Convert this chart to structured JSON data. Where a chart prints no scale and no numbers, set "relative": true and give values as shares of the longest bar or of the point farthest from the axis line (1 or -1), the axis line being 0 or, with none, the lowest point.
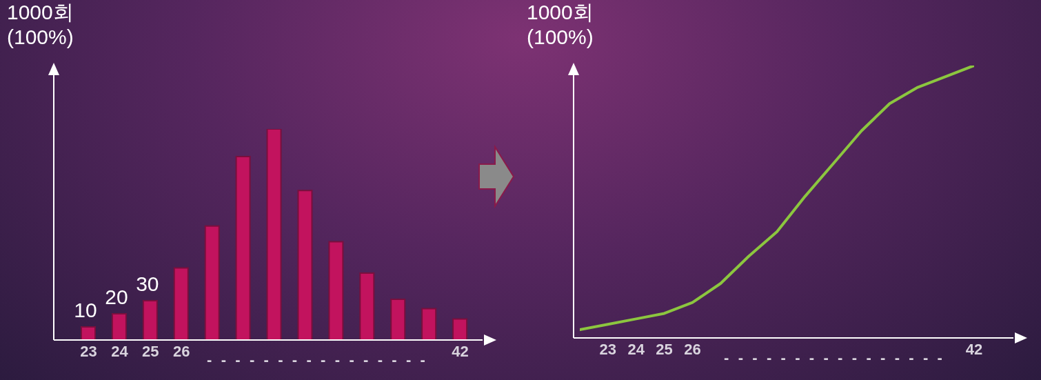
{
  "chart_data": [
    {
      "type": "bar",
      "ylabel": "1000회\n(100%)",
      "color": "#c2135e",
      "categories": [
        "23",
        "24",
        "25",
        "26",
        null,
        null,
        null,
        null,
        null,
        null,
        null,
        null,
        "42"
      ],
      "values": [
        10,
        20,
        30,
        55,
        87,
        140,
        161,
        114,
        75,
        51,
        31,
        24,
        16
      ],
      "value_labels": [
        "10",
        "20",
        "30",
        null,
        null,
        null,
        null,
        null,
        null,
        null,
        null,
        null,
        null
      ],
      "annotations": [
        "- - - - - - - - - - - - - - - -"
      ]
    },
    {
      "type": "line",
      "ylabel": "1000회\n(100%)",
      "relative": true,
      "color": "#8cc63f",
      "categories": [
        null,
        "23",
        "24",
        "25",
        "26",
        null,
        null,
        null,
        null,
        null,
        null,
        null,
        null,
        null,
        "42"
      ],
      "values": [
        0.03,
        0.05,
        0.07,
        0.09,
        0.13,
        0.2,
        0.3,
        0.39,
        0.52,
        0.64,
        0.76,
        0.86,
        0.92,
        0.96,
        1
      ],
      "annotations": [
        "- - - - - - - - - - - - - - - -"
      ]
    }
  ]
}
